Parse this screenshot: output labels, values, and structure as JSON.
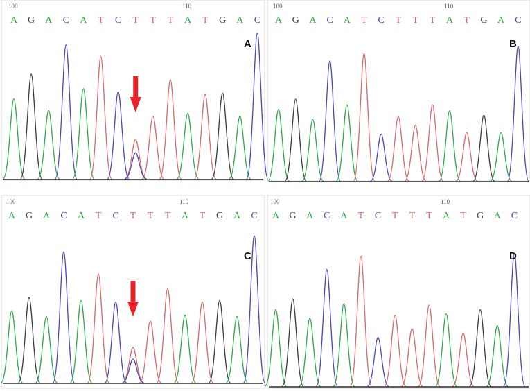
{
  "colors": {
    "A": "#2ea84a",
    "G": "#3a3a3a",
    "C": "#4848b8",
    "T": "#d66a6a",
    "arrow": "#e8242a",
    "baseline": "#2a2a2a",
    "panel_border": "#d8d8d8"
  },
  "sequence": [
    "A",
    "G",
    "A",
    "C",
    "A",
    "T",
    "C",
    "T",
    "T",
    "T",
    "A",
    "T",
    "G",
    "A",
    "C"
  ],
  "panels": [
    {
      "label": "A",
      "ruler": [
        "100",
        "110"
      ],
      "heights": [
        0.55,
        0.72,
        0.47,
        0.92,
        0.62,
        0.84,
        0.6,
        0.27,
        0.43,
        0.68,
        0.45,
        0.58,
        0.59,
        0.43,
        1.0
      ],
      "secondary": [
        {
          "base": 7,
          "color": "C",
          "height": 0.18
        }
      ],
      "arrow": true
    },
    {
      "label": "B",
      "ruler": [
        "100",
        "110"
      ],
      "heights": [
        0.49,
        0.56,
        0.42,
        0.82,
        0.52,
        0.87,
        0.32,
        0.44,
        0.38,
        0.52,
        0.48,
        0.33,
        0.45,
        0.33,
        0.92
      ],
      "secondary": [],
      "arrow": false
    },
    {
      "label": "C",
      "ruler": [
        "100",
        "110"
      ],
      "heights": [
        0.49,
        0.58,
        0.45,
        0.89,
        0.56,
        0.74,
        0.55,
        0.24,
        0.42,
        0.64,
        0.46,
        0.55,
        0.56,
        0.45,
        1.0
      ],
      "secondary": [
        {
          "base": 7,
          "color": "C",
          "height": 0.16
        }
      ],
      "arrow": true
    },
    {
      "label": "D",
      "ruler": [
        "100",
        "110"
      ],
      "heights": [
        0.52,
        0.59,
        0.46,
        0.79,
        0.56,
        0.88,
        0.33,
        0.48,
        0.39,
        0.55,
        0.49,
        0.36,
        0.52,
        0.41,
        0.9
      ],
      "secondary": [],
      "arrow": false
    }
  ]
}
